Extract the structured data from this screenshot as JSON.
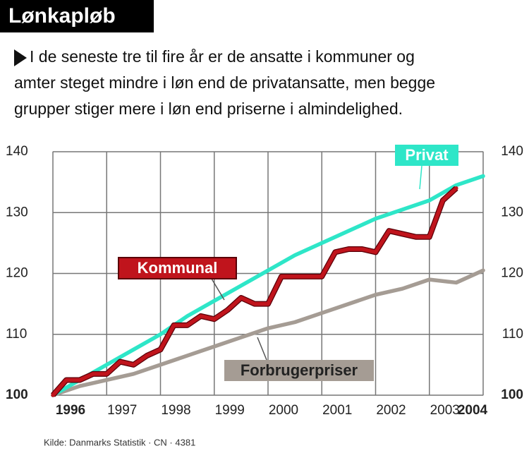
{
  "chart_data": {
    "type": "line",
    "title": "Lønkapløb",
    "subtitle": [
      "I de seneste tre til fire år er de ansatte i kommuner og",
      "amter steget mindre i løn end de privatansatte, men begge",
      "grupper stiger mere i løn end priserne i  almindelighed."
    ],
    "source": "Kilde: Danmarks Statistik · CN · 4381",
    "xlim": [
      1996,
      2004
    ],
    "xticks": [
      1996,
      1997,
      1998,
      1999,
      2000,
      2001,
      2002,
      2003,
      2004
    ],
    "ylim": [
      100,
      140
    ],
    "yticks": [
      100,
      110,
      120,
      130,
      140
    ],
    "grid": true,
    "series": [
      {
        "name": "Privat",
        "color": "#2ee6c8",
        "x": [
          1996,
          1996.5,
          1997,
          1997.5,
          1998,
          1998.5,
          1999,
          1999.5,
          2000,
          2000.5,
          2001,
          2001.5,
          2002,
          2002.5,
          2003,
          2003.5,
          2004
        ],
        "values": [
          100,
          102.5,
          105,
          107.5,
          110,
          113,
          115.5,
          118,
          120.5,
          123,
          125,
          127,
          129,
          130.5,
          132,
          134.5,
          136
        ]
      },
      {
        "name": "Kommunal",
        "color": "#c0141c",
        "x": [
          1996,
          1996.25,
          1996.5,
          1996.75,
          1997,
          1997.25,
          1997.5,
          1997.75,
          1998,
          1998.25,
          1998.5,
          1998.75,
          1999,
          1999.25,
          1999.5,
          1999.75,
          2000,
          2000.25,
          2000.5,
          2000.75,
          2001,
          2001.25,
          2001.5,
          2001.75,
          2002,
          2002.25,
          2002.5,
          2002.75,
          2003,
          2003.25,
          2003.5
        ],
        "values": [
          100,
          102.5,
          102.5,
          103.5,
          103.5,
          105.5,
          105,
          106.5,
          107.5,
          111.5,
          111.5,
          113,
          112.5,
          114,
          116,
          115,
          115,
          119.5,
          119.5,
          119.5,
          119.5,
          123.5,
          124,
          124,
          123.5,
          127,
          126.5,
          126,
          126,
          132,
          134
        ]
      },
      {
        "name": "Forbrugerpriser",
        "color": "#a59c94",
        "x": [
          1996,
          1996.5,
          1997,
          1997.5,
          1998,
          1998.5,
          1999,
          1999.5,
          2000,
          2000.5,
          2001,
          2001.5,
          2002,
          2002.5,
          2003,
          2003.5,
          2004
        ],
        "values": [
          100,
          101.5,
          102.5,
          103.5,
          105,
          106.5,
          108,
          109.5,
          111,
          112,
          113.5,
          115,
          116.5,
          117.5,
          119,
          118.5,
          120.5
        ]
      }
    ]
  }
}
